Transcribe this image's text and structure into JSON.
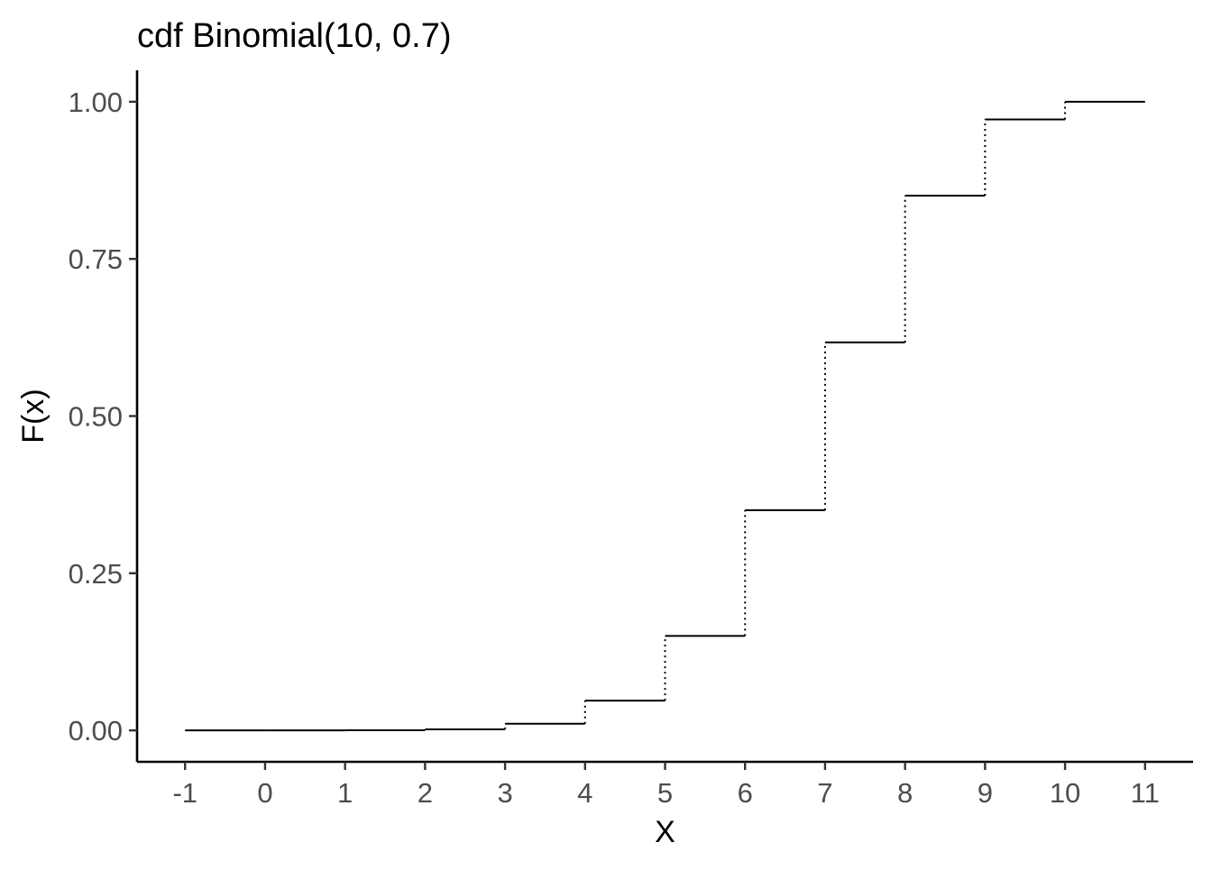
{
  "chart_data": {
    "type": "line",
    "subtype": "step",
    "title": "cdf Binomial(10, 0.7)",
    "xlabel": "X",
    "ylabel": "F(x)",
    "xlim": [
      -1.6,
      11.6
    ],
    "ylim": [
      -0.05,
      1.05
    ],
    "x_ticks": [
      -1,
      0,
      1,
      2,
      3,
      4,
      5,
      6,
      7,
      8,
      9,
      10,
      11
    ],
    "x_tick_labels": [
      "-1",
      "0",
      "1",
      "2",
      "3",
      "4",
      "5",
      "6",
      "7",
      "8",
      "9",
      "10",
      "11"
    ],
    "y_ticks": [
      0,
      0.25,
      0.5,
      0.75,
      1
    ],
    "y_tick_labels": [
      "0.00",
      "0.25",
      "0.50",
      "0.75",
      "1.00"
    ],
    "grid": false,
    "line_color": "#000000",
    "vertical_jumps_style": "dotted",
    "steps": [
      {
        "x_start": -1,
        "x_end": 0,
        "y": 0.0
      },
      {
        "x_start": 0,
        "x_end": 1,
        "y": 5.9e-06
      },
      {
        "x_start": 1,
        "x_end": 2,
        "y": 0.0001437
      },
      {
        "x_start": 2,
        "x_end": 3,
        "y": 0.0015904
      },
      {
        "x_start": 3,
        "x_end": 4,
        "y": 0.010592
      },
      {
        "x_start": 4,
        "x_end": 5,
        "y": 0.0473489
      },
      {
        "x_start": 5,
        "x_end": 6,
        "y": 0.1502683
      },
      {
        "x_start": 6,
        "x_end": 7,
        "y": 0.3503893
      },
      {
        "x_start": 7,
        "x_end": 8,
        "y": 0.6172172
      },
      {
        "x_start": 8,
        "x_end": 9,
        "y": 0.8506917
      },
      {
        "x_start": 9,
        "x_end": 10,
        "y": 0.9717525
      },
      {
        "x_start": 10,
        "x_end": 11,
        "y": 1.0
      }
    ]
  }
}
